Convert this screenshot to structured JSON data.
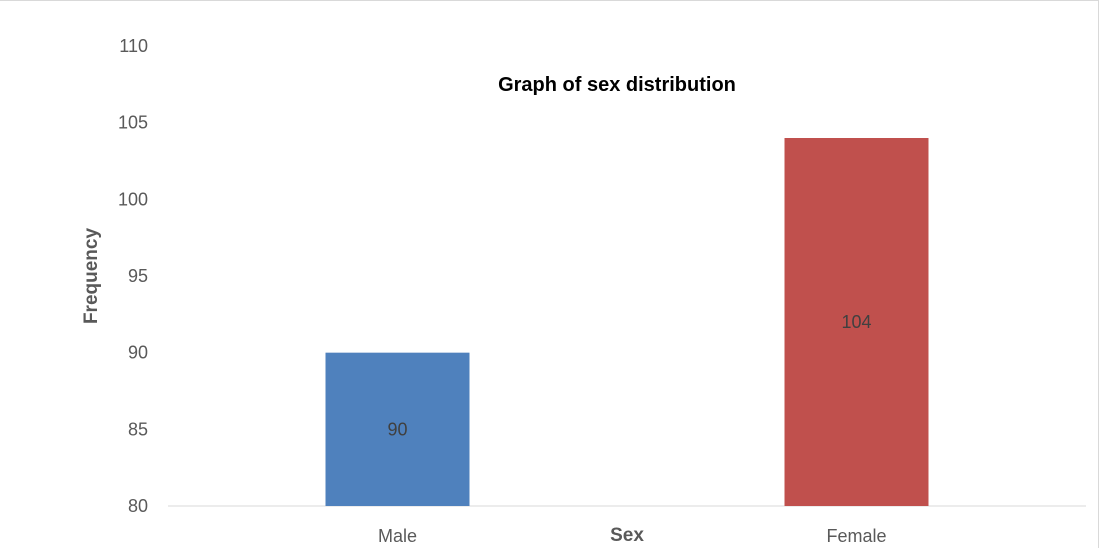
{
  "chart_data": {
    "type": "bar",
    "title": "Graph of sex distribution",
    "xlabel": "Sex",
    "ylabel": "Frequency",
    "categories": [
      "Male",
      "Female"
    ],
    "values": [
      90,
      104
    ],
    "data_labels": [
      "90",
      "104"
    ],
    "ylim": [
      80,
      110
    ],
    "yticks": [
      80,
      85,
      90,
      95,
      100,
      105,
      110
    ],
    "ytick_labels": [
      "80",
      "85",
      "90",
      "95",
      "100",
      "105",
      "110"
    ],
    "colors": [
      "#4f81bd",
      "#c0504d"
    ],
    "grid": false,
    "legend": "none"
  }
}
